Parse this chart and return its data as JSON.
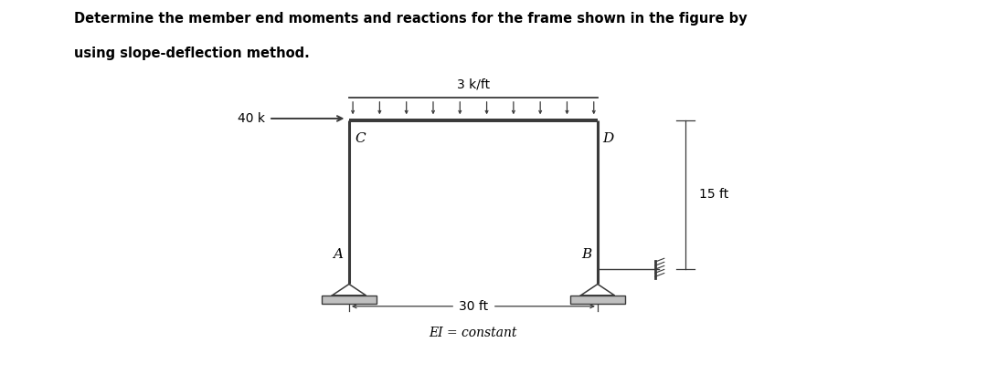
{
  "title_line1": "Determine the member end moments and reactions for the frame shown in the figure by",
  "title_line2": "using slope-deflection method.",
  "title_fontsize": 10.5,
  "title_fontweight": "bold",
  "bg_color": "#ffffff",
  "fc": "#3a3a3a",
  "lw_frame": 2.2,
  "lw_thin": 1.0,
  "lw_dim": 0.9,
  "label_fs": 10,
  "dim_fs": 9,
  "load_label": "3 k/ft",
  "hload_label": "40 k",
  "span_label": "30 ft",
  "height_label": "15 ft",
  "ei_label": "EI = constant",
  "node_C": "C",
  "node_D": "D",
  "node_A": "A",
  "node_B": "B",
  "xl": 0.295,
  "xr": 0.62,
  "yb": 0.195,
  "yt": 0.75,
  "n_load_arrows": 10
}
